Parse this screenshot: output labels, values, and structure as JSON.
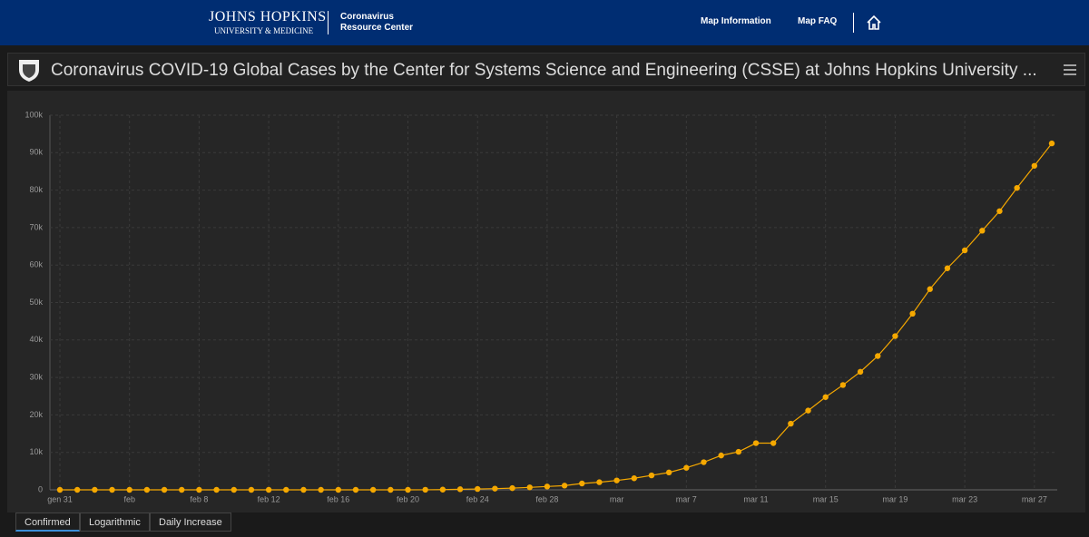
{
  "header": {
    "logo_line1": "JOHNS HOPKINS",
    "logo_line2": "UNIVERSITY & MEDICINE",
    "center_line1": "Coronavirus",
    "center_line2": "Resource Center",
    "nav": [
      "Map Information",
      "Map FAQ"
    ]
  },
  "panel": {
    "title": "Coronavirus COVID-19 Global Cases by the Center for Systems Science and Engineering (CSSE) at Johns Hopkins University ..."
  },
  "chart_data": {
    "type": "line",
    "color": "#f5a800",
    "categories": [
      "gen 31",
      null,
      null,
      null,
      "feb",
      null,
      null,
      null,
      "feb 8",
      null,
      null,
      null,
      "feb 12",
      null,
      null,
      null,
      "feb 16",
      null,
      null,
      null,
      "feb 20",
      null,
      null,
      null,
      "feb 24",
      null,
      null,
      null,
      "feb 28",
      null,
      null,
      null,
      "mar",
      null,
      null,
      null,
      "mar 7",
      null,
      null,
      null,
      "mar 11",
      null,
      null,
      null,
      "mar 15",
      null,
      null,
      null,
      "mar 19",
      null,
      null,
      null,
      "mar 23",
      null,
      null,
      null,
      "mar 27",
      null
    ],
    "values": [
      2,
      2,
      2,
      2,
      2,
      2,
      2,
      3,
      3,
      3,
      3,
      3,
      3,
      3,
      3,
      3,
      3,
      3,
      3,
      3,
      3,
      20,
      62,
      155,
      229,
      322,
      453,
      655,
      888,
      1128,
      1694,
      2036,
      2502,
      3089,
      3858,
      4636,
      5883,
      7375,
      9172,
      10149,
      12462,
      12462,
      17660,
      21157,
      24747,
      27980,
      31506,
      35713,
      41035,
      47021,
      53578,
      59138,
      63927,
      69176,
      74386,
      80589,
      86498,
      92472
    ],
    "ylim": [
      0,
      100000
    ],
    "yticks": [
      0,
      {
        "value": 10000,
        "label": "10k"
      },
      {
        "value": 20000,
        "label": "20k"
      },
      {
        "value": 30000,
        "label": "30k"
      },
      {
        "value": 40000,
        "label": "40k"
      },
      {
        "value": 50000,
        "label": "50k"
      },
      {
        "value": 60000,
        "label": "60k"
      },
      {
        "value": 70000,
        "label": "70k"
      },
      {
        "value": 80000,
        "label": "80k"
      },
      {
        "value": 90000,
        "label": "90k"
      },
      {
        "value": 100000,
        "label": "100k"
      }
    ],
    "grid": true
  },
  "tabs": [
    "Confirmed",
    "Logarithmic",
    "Daily Increase"
  ]
}
